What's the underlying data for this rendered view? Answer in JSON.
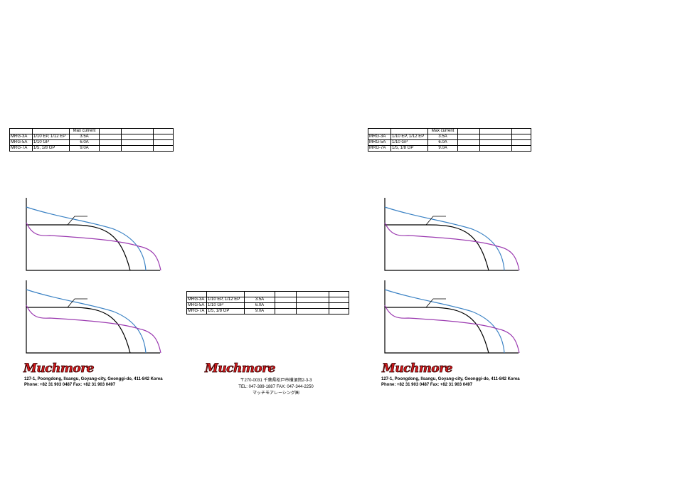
{
  "tables": [
    {
      "header": [
        "Max current"
      ],
      "rows": [
        [
          "MRG-3A",
          "1/10 EP, 1/12 EP",
          "3.5A"
        ],
        [
          "MRG-5A",
          "1/10 GP",
          "6.0A"
        ],
        [
          "MRG-7A",
          "1/5, 1/8 GP",
          "9.0A"
        ]
      ]
    },
    {
      "rows": [
        [
          "MRG-3A",
          "1/10 EP, 1/12 EP",
          "3.5A"
        ],
        [
          "MRG-5A",
          "1/10 GP",
          "6.0A"
        ],
        [
          "MRG-7A",
          "1/5, 1/8 GP",
          "9.0A"
        ]
      ]
    },
    {
      "header": [
        "Max current"
      ],
      "rows": [
        [
          "MRG-3A",
          "1/10 EP, 1/12 EP",
          "3.5A"
        ],
        [
          "MRG-5A",
          "1/10 GP",
          "6.0A"
        ],
        [
          "MRG-7A",
          "1/5, 1/8 GP",
          "9.0A"
        ]
      ]
    }
  ],
  "footers": [
    {
      "logo": "Muchmore",
      "lines": [
        "127-1, Poongdong, Ilsangu, Goyang-city, Geonggi-do, 411-842 Korea",
        "Phone: +82 31 903 0487  Fax: +82 31 903 0497"
      ]
    },
    {
      "logo": "Muchmore",
      "lines": [
        "〒270-0031  千葉県松戸市横須賀2-3-3",
        "TEL: 047-389-1887  FAX: 047-344-2250",
        "マッチモアレーシング㈱"
      ]
    },
    {
      "logo": "Muchmore",
      "lines": [
        "127-1, Poongdong, Ilsangu, Goyang-city, Geonggi-do, 411-842 Korea",
        "Phone: +82 31 903 0487  Fax: +82 31 903 0497"
      ]
    }
  ]
}
